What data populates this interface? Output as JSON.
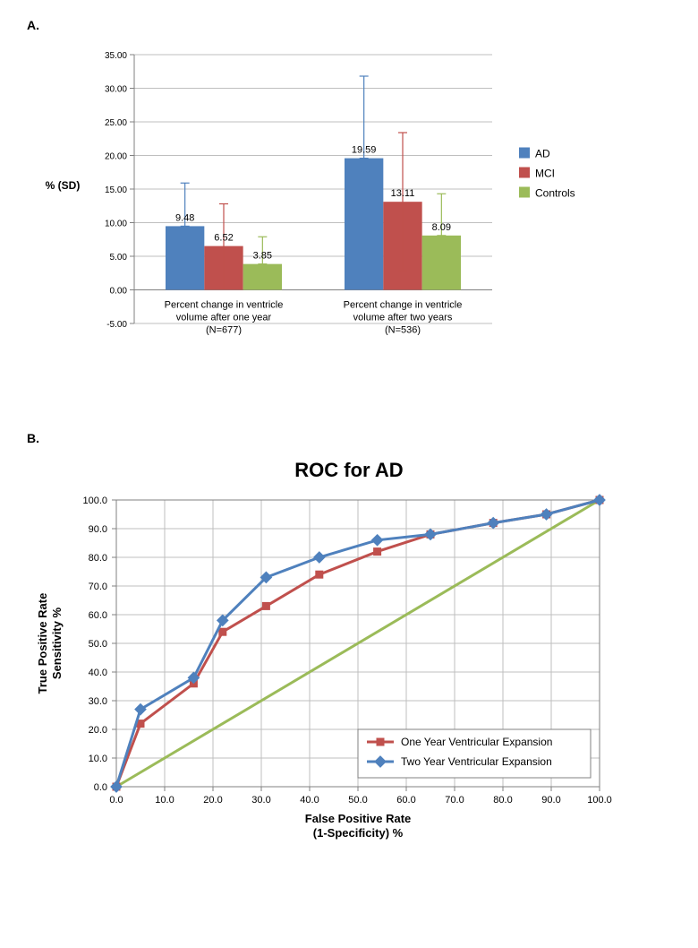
{
  "panelA": {
    "label": "A.",
    "type": "bar",
    "ylabel": "% (SD)",
    "ylabel_fontsize": 12,
    "ylabel_fontweight": "bold",
    "yaxis": {
      "min": -5,
      "max": 35,
      "step": 5,
      "tick_format": "0.00"
    },
    "groups": [
      {
        "label": "Percent change in ventricle\nvolume after one year\n(N=677)"
      },
      {
        "label": "Percent change in ventricle\nvolume after two years\n(N=536)"
      }
    ],
    "series": [
      {
        "name": "AD",
        "color": "#4f81bd",
        "values": [
          9.48,
          19.59
        ],
        "sd_upper": [
          15.9,
          31.8
        ],
        "sd_lower": [
          9.48,
          19.59
        ]
      },
      {
        "name": "MCI",
        "color": "#c0504d",
        "values": [
          6.52,
          13.11
        ],
        "sd_upper": [
          12.8,
          23.4
        ],
        "sd_lower": [
          0.1,
          2.8
        ]
      },
      {
        "name": "Controls",
        "color": "#9bbb59",
        "values": [
          3.85,
          8.09
        ],
        "sd_upper": [
          7.9,
          14.3
        ],
        "sd_lower": [
          3.85,
          8.09
        ]
      }
    ],
    "value_label_fontsize": 11,
    "axis_label_fontsize": 11,
    "tick_fontsize": 10,
    "gridline_color": "#bfbfbf",
    "axis_color": "#808080",
    "error_bar_width": 1,
    "bar_gap": 0
  },
  "panelB": {
    "label": "B.",
    "type": "line",
    "title": "ROC for AD",
    "title_fontsize": 22,
    "xlabel": "False Positive Rate\n(1-Specificity) %",
    "ylabel": "True Positive Rate\nSensitivity %",
    "label_fontsize": 13,
    "xaxis": {
      "min": 0,
      "max": 100,
      "step": 10,
      "tick_format": "0.0"
    },
    "yaxis": {
      "min": 0,
      "max": 100,
      "step": 10,
      "tick_format": "0.0"
    },
    "diagonal": {
      "color": "#9bbb59",
      "width": 3
    },
    "series": [
      {
        "name": "One Year Ventricular Expansion",
        "color": "#c0504d",
        "marker": "square",
        "marker_size": 8,
        "line_width": 3,
        "points": [
          [
            0,
            0
          ],
          [
            5,
            22
          ],
          [
            16,
            36
          ],
          [
            22,
            54
          ],
          [
            31,
            63
          ],
          [
            42,
            74
          ],
          [
            54,
            82
          ],
          [
            65,
            88
          ],
          [
            78,
            92
          ],
          [
            89,
            95
          ],
          [
            100,
            100
          ]
        ]
      },
      {
        "name": "Two Year Ventricular Expansion",
        "color": "#4f81bd",
        "marker": "diamond",
        "marker_size": 8,
        "line_width": 3,
        "points": [
          [
            0,
            0
          ],
          [
            5,
            27
          ],
          [
            16,
            38
          ],
          [
            22,
            58
          ],
          [
            31,
            73
          ],
          [
            42,
            80
          ],
          [
            54,
            86
          ],
          [
            65,
            88
          ],
          [
            78,
            92
          ],
          [
            89,
            95
          ],
          [
            100,
            100
          ]
        ]
      }
    ],
    "gridline_color": "#bfbfbf",
    "axis_color": "#808080",
    "tick_fontsize": 11,
    "legend_border": "#808080",
    "legend_fontsize": 12
  }
}
